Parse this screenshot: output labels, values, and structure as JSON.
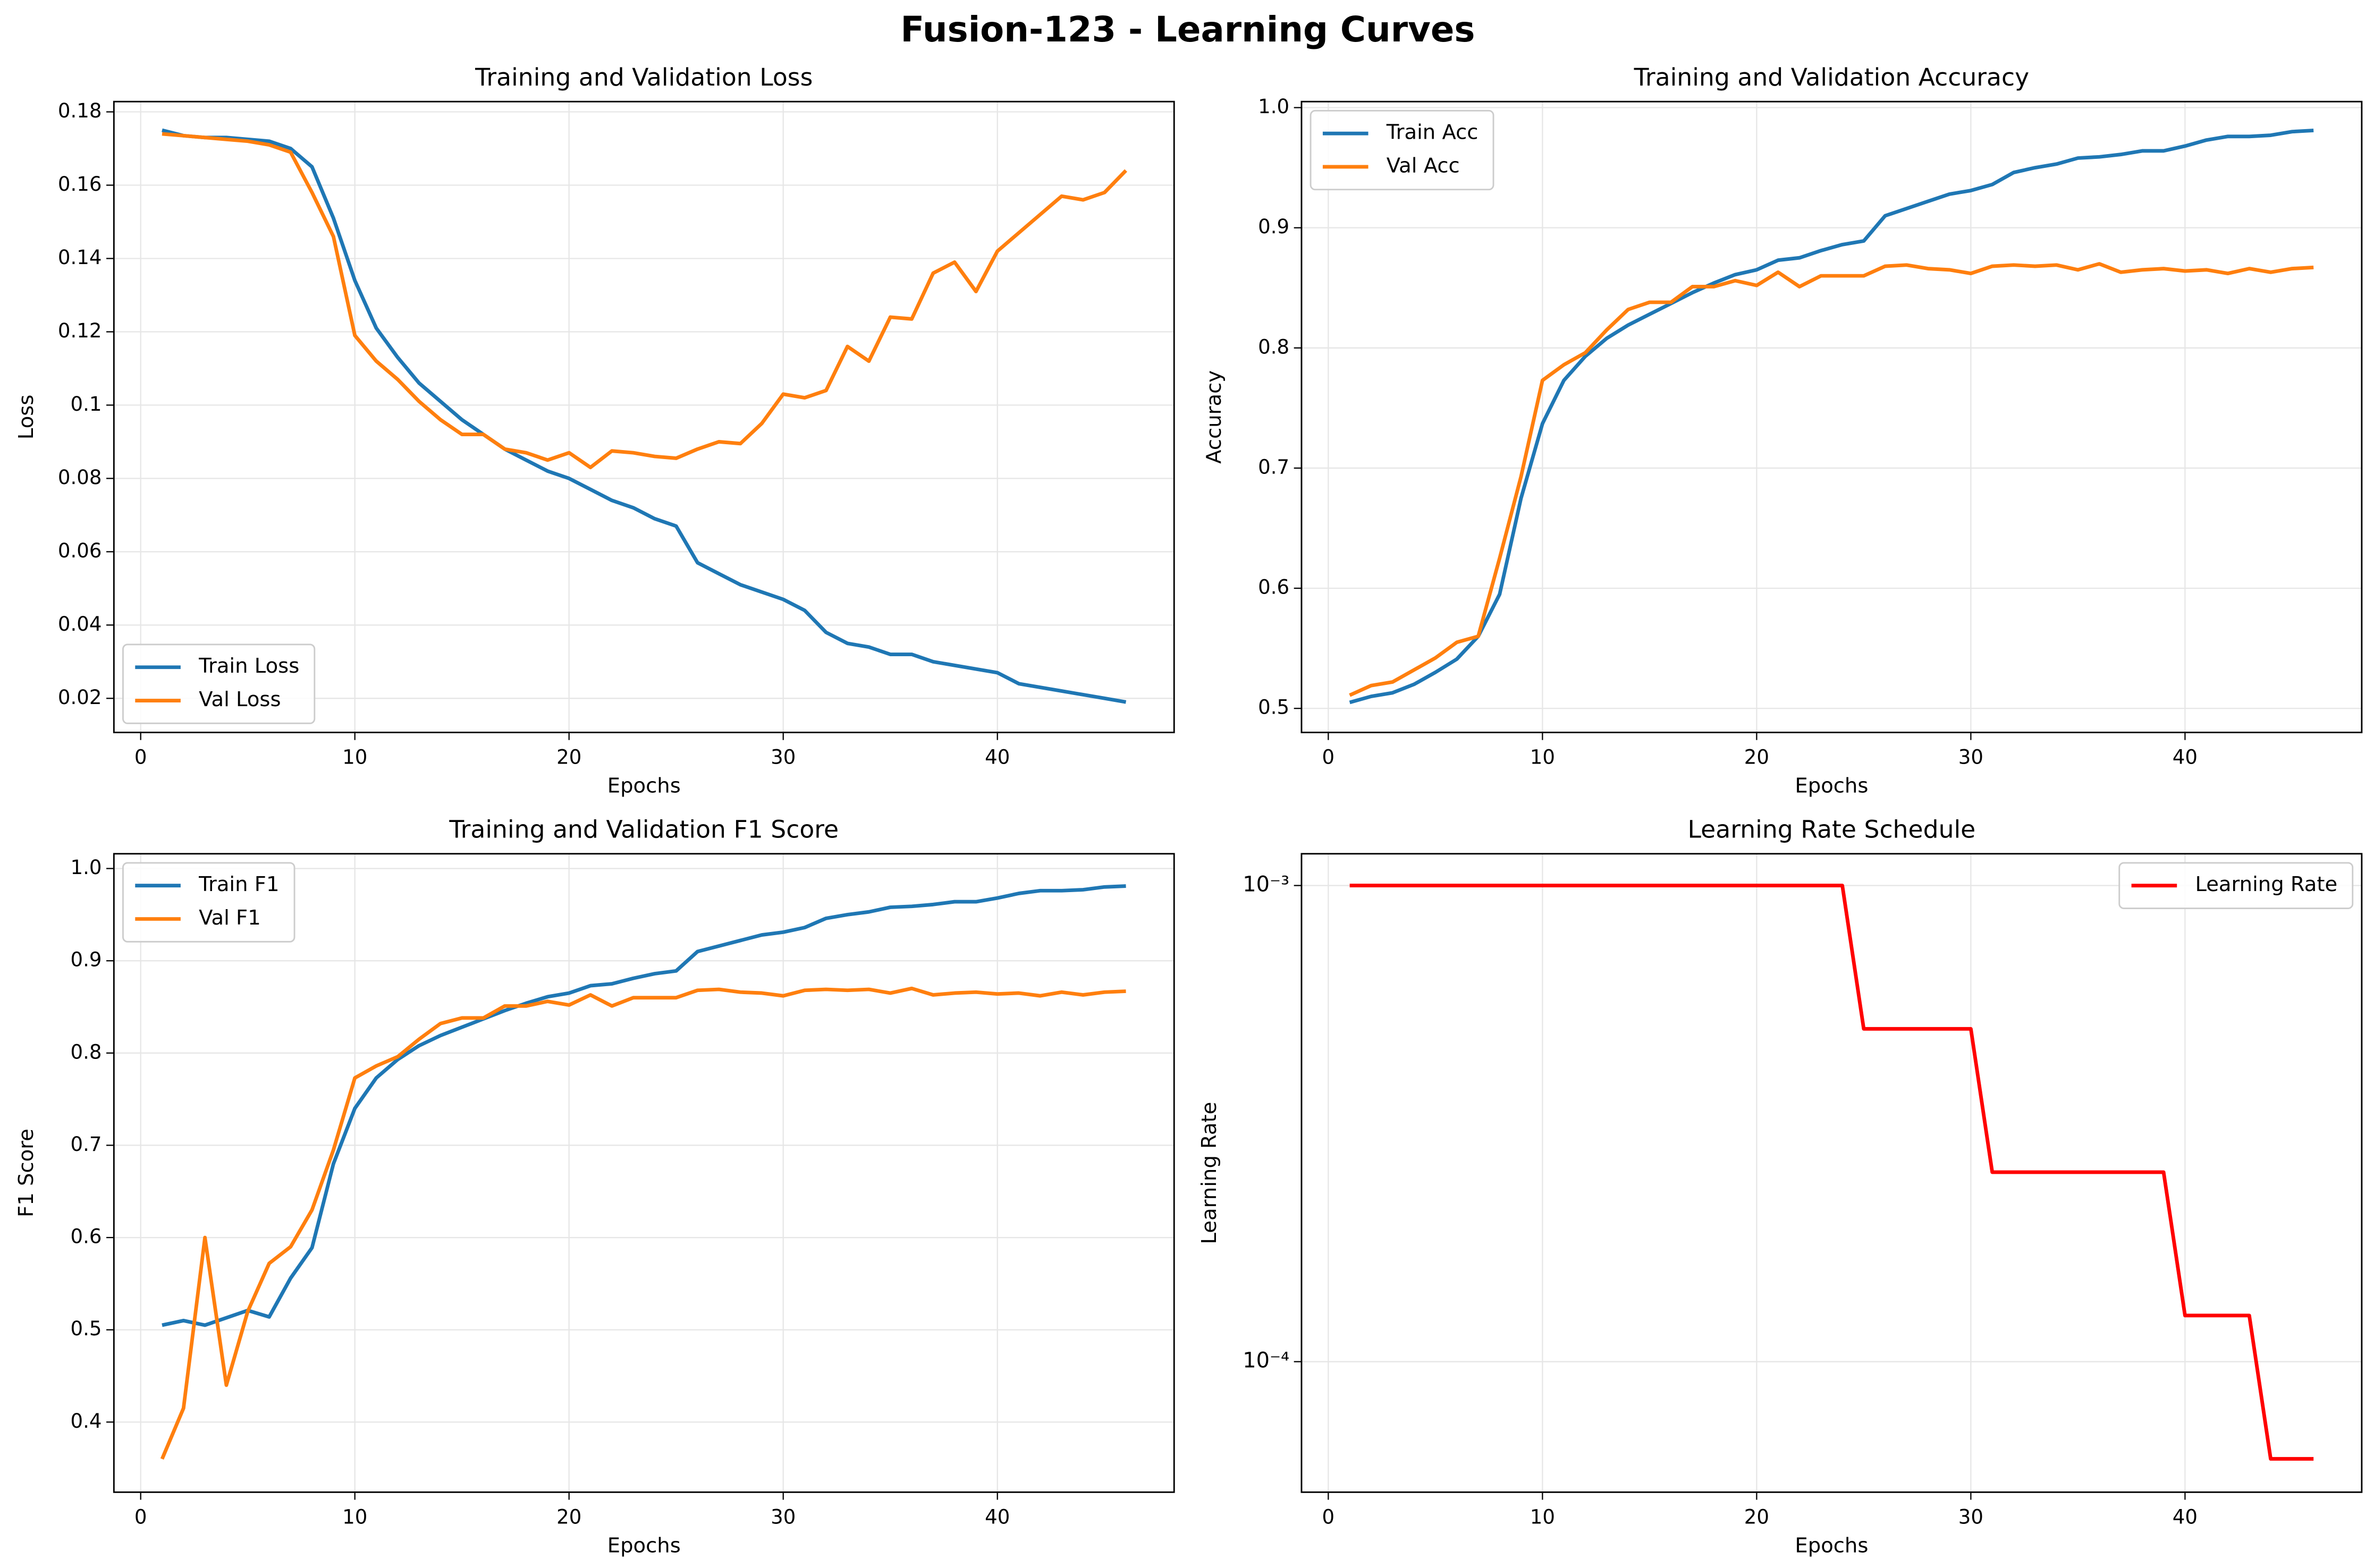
{
  "title": "Fusion-123 - Learning Curves",
  "chart_data": [
    {
      "type": "line",
      "title": "Training and Validation Loss",
      "xlabel": "Epochs",
      "ylabel": "Loss",
      "x": [
        1,
        2,
        3,
        4,
        5,
        6,
        7,
        8,
        9,
        10,
        11,
        12,
        13,
        14,
        15,
        16,
        17,
        18,
        19,
        20,
        21,
        22,
        23,
        24,
        25,
        26,
        27,
        28,
        29,
        30,
        31,
        32,
        33,
        34,
        35,
        36,
        37,
        38,
        39,
        40,
        41,
        42,
        43,
        44,
        45,
        46
      ],
      "series": [
        {
          "name": "Train Loss",
          "color": "#1f77b4",
          "values": [
            0.175,
            0.1735,
            0.173,
            0.173,
            0.1725,
            0.172,
            0.17,
            0.165,
            0.151,
            0.134,
            0.121,
            0.113,
            0.106,
            0.101,
            0.096,
            0.092,
            0.088,
            0.085,
            0.082,
            0.08,
            0.077,
            0.074,
            0.072,
            0.069,
            0.067,
            0.057,
            0.054,
            0.051,
            0.049,
            0.047,
            0.044,
            0.038,
            0.035,
            0.034,
            0.032,
            0.032,
            0.03,
            0.029,
            0.028,
            0.027,
            0.024,
            0.023,
            0.022,
            0.021,
            0.02,
            0.019
          ]
        },
        {
          "name": "Val Loss",
          "color": "#ff7f0e",
          "values": [
            0.174,
            0.1735,
            0.173,
            0.1725,
            0.172,
            0.171,
            0.169,
            0.158,
            0.146,
            0.119,
            0.112,
            0.107,
            0.101,
            0.096,
            0.092,
            0.092,
            0.088,
            0.087,
            0.085,
            0.087,
            0.083,
            0.0875,
            0.087,
            0.086,
            0.0855,
            0.088,
            0.09,
            0.0895,
            0.095,
            0.103,
            0.102,
            0.104,
            0.116,
            0.112,
            0.124,
            0.1235,
            0.136,
            0.139,
            0.131,
            0.142,
            0.147,
            0.152,
            0.157,
            0.156,
            0.158,
            0.164
          ]
        }
      ],
      "xlim": [
        -1.25,
        48.25
      ],
      "xticks": [
        0,
        10,
        20,
        30,
        40
      ],
      "ylim": [
        0.0107,
        0.1828
      ],
      "yticks": [
        0.02,
        0.04,
        0.06,
        0.08,
        0.1,
        0.12,
        0.14,
        0.16,
        0.18
      ],
      "yscale": "linear",
      "grid": true,
      "legend": "lower left"
    },
    {
      "type": "line",
      "title": "Training and Validation Accuracy",
      "xlabel": "Epochs",
      "ylabel": "Accuracy",
      "x": [
        1,
        2,
        3,
        4,
        5,
        6,
        7,
        8,
        9,
        10,
        11,
        12,
        13,
        14,
        15,
        16,
        17,
        18,
        19,
        20,
        21,
        22,
        23,
        24,
        25,
        26,
        27,
        28,
        29,
        30,
        31,
        32,
        33,
        34,
        35,
        36,
        37,
        38,
        39,
        40,
        41,
        42,
        43,
        44,
        45,
        46
      ],
      "series": [
        {
          "name": "Train Acc",
          "color": "#1f77b4",
          "values": [
            0.505,
            0.51,
            0.513,
            0.52,
            0.53,
            0.541,
            0.56,
            0.595,
            0.675,
            0.737,
            0.773,
            0.793,
            0.808,
            0.819,
            0.828,
            0.837,
            0.846,
            0.854,
            0.861,
            0.865,
            0.873,
            0.875,
            0.881,
            0.886,
            0.889,
            0.91,
            0.916,
            0.922,
            0.928,
            0.931,
            0.936,
            0.946,
            0.95,
            0.953,
            0.958,
            0.959,
            0.961,
            0.964,
            0.964,
            0.968,
            0.973,
            0.976,
            0.976,
            0.977,
            0.98,
            0.981
          ]
        },
        {
          "name": "Val Acc",
          "color": "#ff7f0e",
          "values": [
            0.511,
            0.519,
            0.522,
            0.532,
            0.542,
            0.555,
            0.56,
            0.625,
            0.693,
            0.773,
            0.786,
            0.796,
            0.815,
            0.832,
            0.838,
            0.838,
            0.851,
            0.851,
            0.856,
            0.852,
            0.863,
            0.851,
            0.86,
            0.86,
            0.86,
            0.868,
            0.869,
            0.866,
            0.865,
            0.862,
            0.868,
            0.869,
            0.868,
            0.869,
            0.865,
            0.87,
            0.863,
            0.865,
            0.866,
            0.864,
            0.865,
            0.862,
            0.866,
            0.863,
            0.866,
            0.867
          ]
        }
      ],
      "xlim": [
        -1.25,
        48.25
      ],
      "xticks": [
        0,
        10,
        20,
        30,
        40
      ],
      "ylim": [
        0.48,
        1.005
      ],
      "yticks": [
        0.5,
        0.6,
        0.7,
        0.8,
        0.9,
        {
          "value": 1.0,
          "label": "1.0"
        }
      ],
      "yscale": "linear",
      "grid": true,
      "legend": "upper left"
    },
    {
      "type": "line",
      "title": "Training and Validation F1 Score",
      "xlabel": "Epochs",
      "ylabel": "F1 Score",
      "x": [
        1,
        2,
        3,
        4,
        5,
        6,
        7,
        8,
        9,
        10,
        11,
        12,
        13,
        14,
        15,
        16,
        17,
        18,
        19,
        20,
        21,
        22,
        23,
        24,
        25,
        26,
        27,
        28,
        29,
        30,
        31,
        32,
        33,
        34,
        35,
        36,
        37,
        38,
        39,
        40,
        41,
        42,
        43,
        44,
        45,
        46
      ],
      "series": [
        {
          "name": "Train F1",
          "color": "#1f77b4",
          "values": [
            0.505,
            0.51,
            0.505,
            0.513,
            0.521,
            0.514,
            0.556,
            0.589,
            0.68,
            0.74,
            0.773,
            0.793,
            0.808,
            0.819,
            0.828,
            0.837,
            0.846,
            0.854,
            0.861,
            0.865,
            0.873,
            0.875,
            0.881,
            0.886,
            0.889,
            0.91,
            0.916,
            0.922,
            0.928,
            0.931,
            0.936,
            0.946,
            0.95,
            0.953,
            0.958,
            0.959,
            0.961,
            0.964,
            0.964,
            0.968,
            0.973,
            0.976,
            0.976,
            0.977,
            0.98,
            0.981
          ]
        },
        {
          "name": "Val F1",
          "color": "#ff7f0e",
          "values": [
            0.36,
            0.415,
            0.6,
            0.44,
            0.52,
            0.572,
            0.59,
            0.63,
            0.695,
            0.773,
            0.786,
            0.796,
            0.815,
            0.832,
            0.838,
            0.838,
            0.851,
            0.851,
            0.856,
            0.852,
            0.863,
            0.851,
            0.86,
            0.86,
            0.86,
            0.868,
            0.869,
            0.866,
            0.865,
            0.862,
            0.868,
            0.869,
            0.868,
            0.869,
            0.865,
            0.87,
            0.863,
            0.865,
            0.866,
            0.864,
            0.865,
            0.862,
            0.866,
            0.863,
            0.866,
            0.867
          ]
        }
      ],
      "xlim": [
        -1.25,
        48.25
      ],
      "xticks": [
        0,
        10,
        20,
        30,
        40
      ],
      "ylim": [
        0.324,
        1.016
      ],
      "yticks": [
        0.4,
        0.5,
        0.6,
        0.7,
        0.8,
        0.9,
        {
          "value": 1.0,
          "label": "1.0"
        }
      ],
      "yscale": "linear",
      "grid": true,
      "legend": "upper left"
    },
    {
      "type": "line",
      "title": "Learning Rate Schedule",
      "xlabel": "Epochs",
      "ylabel": "Learning Rate",
      "x": [
        1,
        2,
        3,
        4,
        5,
        6,
        7,
        8,
        9,
        10,
        11,
        12,
        13,
        14,
        15,
        16,
        17,
        18,
        19,
        20,
        21,
        22,
        23,
        24,
        25,
        26,
        27,
        28,
        29,
        30,
        31,
        32,
        33,
        34,
        35,
        36,
        37,
        38,
        39,
        40,
        41,
        42,
        43,
        44,
        45,
        46
      ],
      "series": [
        {
          "name": "Learning Rate",
          "color": "#ff0000",
          "values": [
            0.001,
            0.001,
            0.001,
            0.001,
            0.001,
            0.001,
            0.001,
            0.001,
            0.001,
            0.001,
            0.001,
            0.001,
            0.001,
            0.001,
            0.001,
            0.001,
            0.001,
            0.001,
            0.001,
            0.001,
            0.001,
            0.001,
            0.001,
            0.001,
            0.0005,
            0.0005,
            0.0005,
            0.0005,
            0.0005,
            0.0005,
            0.00025,
            0.00025,
            0.00025,
            0.00025,
            0.00025,
            0.00025,
            0.00025,
            0.00025,
            0.00025,
            0.000125,
            0.000125,
            0.000125,
            0.000125,
            6.25e-05,
            6.25e-05,
            6.25e-05
          ]
        }
      ],
      "xlim": [
        -1.25,
        48.25
      ],
      "xticks": [
        0,
        10,
        20,
        30,
        40
      ],
      "ylim": [
        5.32e-05,
        0.001166
      ],
      "yticks": [
        {
          "value": 0.001,
          "label": "10⁻³"
        },
        {
          "value": 0.0001,
          "label": "10⁻⁴"
        }
      ],
      "yscale": "log",
      "grid": true,
      "legend": "upper right"
    }
  ]
}
